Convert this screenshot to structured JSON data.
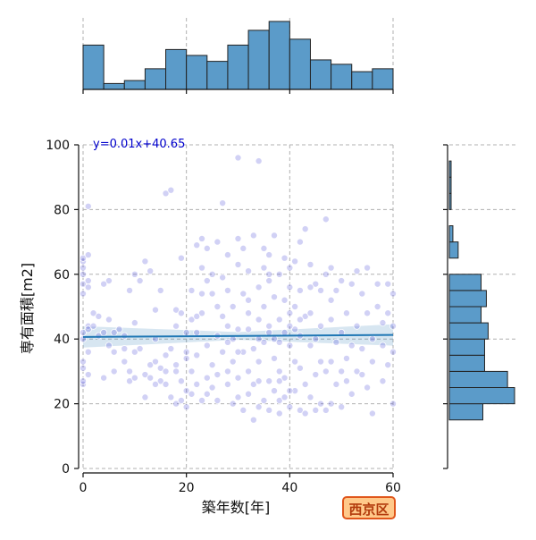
{
  "chart_data": {
    "type": "scatter",
    "xlabel": "築年数[年]",
    "ylabel": "専有面積[m2]",
    "xlim": [
      0,
      60
    ],
    "ylim": [
      0,
      100
    ],
    "xticks": [
      0,
      20,
      40,
      60
    ],
    "yticks": [
      0,
      20,
      40,
      60,
      80,
      100
    ],
    "grid": true,
    "regression": {
      "label": "y=0.01x+40.65",
      "slope": 0.01,
      "intercept": 40.65
    },
    "badge": "西京区",
    "colors": {
      "points": "#5a5adb",
      "line": "#1f77b4",
      "hist": "#5b9bc9",
      "label": "#0000cc"
    },
    "points": [
      [
        0,
        26
      ],
      [
        0,
        27
      ],
      [
        0,
        31
      ],
      [
        0,
        33
      ],
      [
        0,
        40
      ],
      [
        0,
        42
      ],
      [
        0,
        54
      ],
      [
        0,
        57
      ],
      [
        0,
        60
      ],
      [
        0,
        62
      ],
      [
        0,
        64
      ],
      [
        0,
        65
      ],
      [
        1,
        81
      ],
      [
        1,
        66
      ],
      [
        1,
        58
      ],
      [
        1,
        56
      ],
      [
        1,
        44
      ],
      [
        1,
        36
      ],
      [
        1,
        29
      ],
      [
        1,
        43
      ],
      [
        2,
        48
      ],
      [
        3,
        47
      ],
      [
        3,
        41
      ],
      [
        4,
        28
      ],
      [
        4,
        42
      ],
      [
        5,
        46
      ],
      [
        5,
        58
      ],
      [
        5,
        38
      ],
      [
        6,
        36
      ],
      [
        6,
        30
      ],
      [
        7,
        43
      ],
      [
        8,
        41
      ],
      [
        8,
        33
      ],
      [
        9,
        27
      ],
      [
        9,
        30
      ],
      [
        9,
        55
      ],
      [
        10,
        60
      ],
      [
        10,
        36
      ],
      [
        10,
        45
      ],
      [
        11,
        58
      ],
      [
        11,
        37
      ],
      [
        12,
        29
      ],
      [
        12,
        64
      ],
      [
        13,
        32
      ],
      [
        13,
        61
      ],
      [
        13,
        28
      ],
      [
        14,
        40
      ],
      [
        14,
        33
      ],
      [
        14,
        49
      ],
      [
        15,
        55
      ],
      [
        15,
        31
      ],
      [
        15,
        27
      ],
      [
        16,
        35
      ],
      [
        16,
        85
      ],
      [
        16,
        26
      ],
      [
        17,
        37
      ],
      [
        17,
        86
      ],
      [
        17,
        22
      ],
      [
        18,
        32
      ],
      [
        18,
        49
      ],
      [
        18,
        30
      ],
      [
        18,
        20
      ],
      [
        19,
        27
      ],
      [
        19,
        48
      ],
      [
        19,
        21
      ],
      [
        19,
        65
      ],
      [
        20,
        36
      ],
      [
        20,
        24
      ],
      [
        20,
        19
      ],
      [
        20,
        34
      ],
      [
        21,
        46
      ],
      [
        21,
        30
      ],
      [
        21,
        55
      ],
      [
        21,
        23
      ],
      [
        22,
        26
      ],
      [
        22,
        42
      ],
      [
        22,
        35
      ],
      [
        22,
        69
      ],
      [
        23,
        62
      ],
      [
        23,
        21
      ],
      [
        23,
        54
      ],
      [
        23,
        71
      ],
      [
        23,
        48
      ],
      [
        24,
        28
      ],
      [
        24,
        38
      ],
      [
        24,
        68
      ],
      [
        24,
        23
      ],
      [
        25,
        54
      ],
      [
        25,
        32
      ],
      [
        25,
        60
      ],
      [
        25,
        25
      ],
      [
        26,
        41
      ],
      [
        26,
        70
      ],
      [
        26,
        29
      ],
      [
        26,
        21
      ],
      [
        27,
        82
      ],
      [
        27,
        47
      ],
      [
        27,
        36
      ],
      [
        27,
        59
      ],
      [
        28,
        26
      ],
      [
        28,
        55
      ],
      [
        28,
        44
      ],
      [
        28,
        66
      ],
      [
        29,
        40
      ],
      [
        29,
        33
      ],
      [
        29,
        50
      ],
      [
        29,
        20
      ],
      [
        30,
        96
      ],
      [
        30,
        63
      ],
      [
        30,
        43
      ],
      [
        30,
        71
      ],
      [
        30,
        28
      ],
      [
        31,
        54
      ],
      [
        31,
        36
      ],
      [
        31,
        68
      ],
      [
        31,
        18
      ],
      [
        32,
        61
      ],
      [
        32,
        23
      ],
      [
        32,
        48
      ],
      [
        32,
        43
      ],
      [
        33,
        72
      ],
      [
        33,
        26
      ],
      [
        33,
        15
      ],
      [
        33,
        37
      ],
      [
        34,
        95
      ],
      [
        34,
        56
      ],
      [
        34,
        33
      ],
      [
        34,
        19
      ],
      [
        34,
        46
      ],
      [
        35,
        68
      ],
      [
        35,
        50
      ],
      [
        35,
        21
      ],
      [
        35,
        62
      ],
      [
        35,
        39
      ],
      [
        36,
        58
      ],
      [
        36,
        66
      ],
      [
        36,
        27
      ],
      [
        36,
        44
      ],
      [
        36,
        18
      ],
      [
        37,
        53
      ],
      [
        37,
        72
      ],
      [
        37,
        40
      ],
      [
        37,
        24
      ],
      [
        37,
        34
      ],
      [
        38,
        60
      ],
      [
        38,
        46
      ],
      [
        38,
        21
      ],
      [
        38,
        17
      ],
      [
        38,
        30
      ],
      [
        39,
        65
      ],
      [
        39,
        52
      ],
      [
        39,
        42
      ],
      [
        39,
        22
      ],
      [
        39,
        28
      ],
      [
        40,
        62
      ],
      [
        40,
        38
      ],
      [
        40,
        19
      ],
      [
        40,
        48
      ],
      [
        40,
        56
      ],
      [
        41,
        64
      ],
      [
        41,
        43
      ],
      [
        41,
        24
      ],
      [
        41,
        33
      ],
      [
        41,
        50
      ],
      [
        42,
        70
      ],
      [
        42,
        18
      ],
      [
        42,
        41
      ],
      [
        42,
        31
      ],
      [
        42,
        55
      ],
      [
        43,
        74
      ],
      [
        43,
        47
      ],
      [
        43,
        17
      ],
      [
        43,
        26
      ],
      [
        44,
        63
      ],
      [
        44,
        22
      ],
      [
        44,
        48
      ],
      [
        44,
        38
      ],
      [
        45,
        40
      ],
      [
        45,
        57
      ],
      [
        45,
        18
      ],
      [
        45,
        29
      ],
      [
        46,
        33
      ],
      [
        46,
        20
      ],
      [
        46,
        55
      ],
      [
        46,
        44
      ],
      [
        47,
        77
      ],
      [
        47,
        60
      ],
      [
        47,
        18
      ],
      [
        47,
        30
      ],
      [
        48,
        62
      ],
      [
        48,
        46
      ],
      [
        48,
        33
      ],
      [
        48,
        20
      ],
      [
        49,
        26
      ],
      [
        49,
        39
      ],
      [
        49,
        55
      ],
      [
        50,
        42
      ],
      [
        50,
        30
      ],
      [
        50,
        19
      ],
      [
        50,
        58
      ],
      [
        51,
        34
      ],
      [
        51,
        48
      ],
      [
        51,
        27
      ],
      [
        52,
        57
      ],
      [
        52,
        38
      ],
      [
        52,
        23
      ],
      [
        53,
        44
      ],
      [
        53,
        30
      ],
      [
        53,
        61
      ],
      [
        54,
        29
      ],
      [
        54,
        37
      ],
      [
        54,
        54
      ],
      [
        55,
        48
      ],
      [
        55,
        25
      ],
      [
        55,
        62
      ],
      [
        56,
        40
      ],
      [
        56,
        17
      ],
      [
        56,
        33
      ],
      [
        57,
        50
      ],
      [
        57,
        57
      ],
      [
        58,
        38
      ],
      [
        58,
        45
      ],
      [
        58,
        27
      ],
      [
        59,
        32
      ],
      [
        59,
        48
      ],
      [
        59,
        57
      ],
      [
        60,
        20
      ],
      [
        60,
        36
      ],
      [
        60,
        44
      ],
      [
        60,
        54
      ],
      [
        28,
        39
      ],
      [
        30,
        36
      ],
      [
        32,
        52
      ],
      [
        36,
        42
      ],
      [
        38,
        39
      ],
      [
        40,
        44
      ],
      [
        34,
        40
      ],
      [
        26,
        50
      ],
      [
        24,
        58
      ],
      [
        42,
        46
      ],
      [
        36,
        60
      ],
      [
        44,
        56
      ],
      [
        38,
        27
      ],
      [
        40,
        24
      ],
      [
        32,
        30
      ],
      [
        28,
        30
      ],
      [
        34,
        27
      ],
      [
        30,
        22
      ],
      [
        22,
        47
      ],
      [
        20,
        42
      ],
      [
        18,
        44
      ],
      [
        16,
        30
      ],
      [
        14,
        26
      ],
      [
        12,
        22
      ],
      [
        10,
        28
      ],
      [
        8,
        37
      ],
      [
        6,
        42
      ],
      [
        4,
        57
      ],
      [
        2,
        44
      ],
      [
        48,
        52
      ]
    ],
    "hist_x": {
      "bins": [
        0,
        4,
        8,
        12,
        16,
        20,
        24,
        28,
        32,
        36,
        40,
        44,
        48,
        52,
        56,
        60
      ],
      "counts": [
        30,
        4,
        6,
        14,
        27,
        23,
        19,
        30,
        40,
        46,
        34,
        20,
        17,
        12,
        14
      ]
    },
    "hist_y": {
      "bins": [
        15,
        20,
        25,
        30,
        35,
        40,
        45,
        50,
        55,
        60,
        65,
        70,
        75,
        80,
        85,
        90,
        95,
        100
      ],
      "counts": [
        19,
        37,
        33,
        20,
        20,
        22,
        18,
        21,
        18,
        0,
        5,
        2,
        0,
        1,
        1,
        1,
        0
      ]
    }
  }
}
